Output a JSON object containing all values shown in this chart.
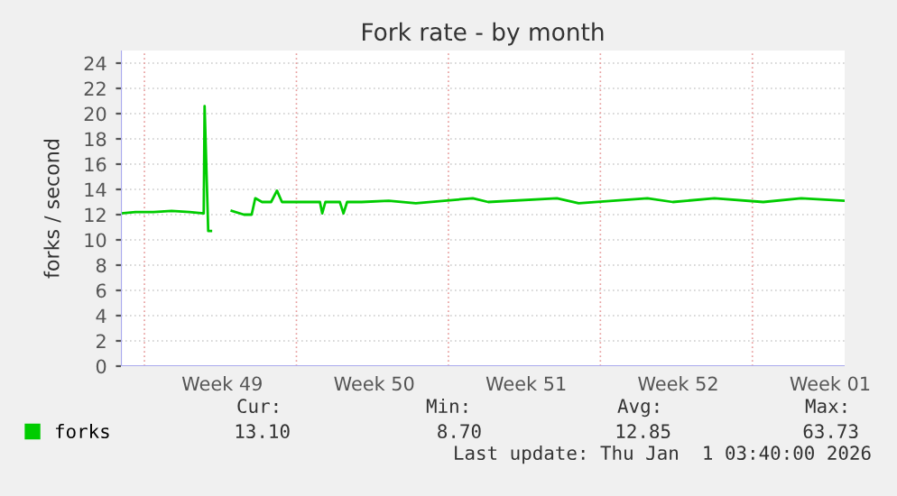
{
  "chart_data": {
    "type": "line",
    "title": "Fork rate - by month",
    "ylabel": "forks / second",
    "x": [
      "2025-11-29T22:00",
      "2025-11-30T14:00",
      "2025-12-01T10:00",
      "2025-12-02T06:00",
      "2025-12-03T02:00",
      "2025-12-03T17:30",
      "2025-12-03T18:30",
      "2025-12-03T22:30",
      "2025-12-04T01:30",
      "2025-12-04T12:00",
      "2025-12-05T00:30",
      "2025-12-05T14:00",
      "2025-12-05T22:30",
      "2025-12-06T02:30",
      "2025-12-06T10:00",
      "2025-12-06T20:00",
      "2025-12-07T02:30",
      "2025-12-07T08:00",
      "2025-12-08T02:00",
      "2025-12-08T22:00",
      "2025-12-09T02:00",
      "2025-12-09T04:30",
      "2025-12-09T08:00",
      "2025-12-10T00:00",
      "2025-12-10T04:00",
      "2025-12-10T08:00",
      "2025-12-11T00:00",
      "2025-12-12T06:00",
      "2025-12-13T12:00",
      "2025-12-16T03:00",
      "2025-12-16T20:00",
      "2025-12-20T00:00",
      "2025-12-21T00:00",
      "2025-12-24T04:00",
      "2025-12-25T08:00",
      "2025-12-27T06:00",
      "2025-12-29T12:00",
      "2025-12-31T06:00",
      "2026-01-02T06:00"
    ],
    "series": [
      {
        "name": "forks",
        "color": "#00cc00",
        "values": [
          12.1,
          12.2,
          12.2,
          12.3,
          12.2,
          12.1,
          20.6,
          10.7,
          10.7,
          null,
          12.3,
          12.0,
          12.0,
          13.3,
          13.0,
          13.0,
          13.9,
          13.0,
          13.0,
          13.0,
          13.0,
          12.1,
          13.0,
          13.0,
          12.1,
          13.0,
          13.0,
          13.1,
          12.9,
          13.3,
          13.0,
          13.3,
          12.9,
          13.3,
          13.0,
          13.3,
          13.0,
          13.3,
          13.1
        ]
      }
    ],
    "xlim": [
      "2025-11-29T22:00",
      "2026-01-02T06:00"
    ],
    "xticks": [
      {
        "value": "2025-12-01T00:00",
        "label": null
      },
      {
        "value": "2025-12-04T14:00",
        "label": "Week 49"
      },
      {
        "value": "2025-12-08T00:00",
        "label": null
      },
      {
        "value": "2025-12-11T14:00",
        "label": "Week 50"
      },
      {
        "value": "2025-12-15T00:00",
        "label": null
      },
      {
        "value": "2025-12-18T14:00",
        "label": "Week 51"
      },
      {
        "value": "2025-12-22T00:00",
        "label": null
      },
      {
        "value": "2025-12-25T14:00",
        "label": "Week 52"
      },
      {
        "value": "2025-12-29T00:00",
        "label": null
      },
      {
        "value": "2026-01-01T14:00",
        "label": "Week 01"
      }
    ],
    "ylim": [
      0,
      25
    ],
    "yticks": [
      0,
      2,
      4,
      6,
      8,
      10,
      12,
      14,
      16,
      18,
      20,
      22,
      24
    ],
    "grid": true,
    "legend": "bottom left",
    "annotations": [
      "Cur:",
      "Min:",
      "Avg:",
      "Max:",
      "13.10",
      "8.70",
      "12.85",
      "63.73",
      "Last update: Thu Jan  1 03:40:00 2026"
    ]
  }
}
